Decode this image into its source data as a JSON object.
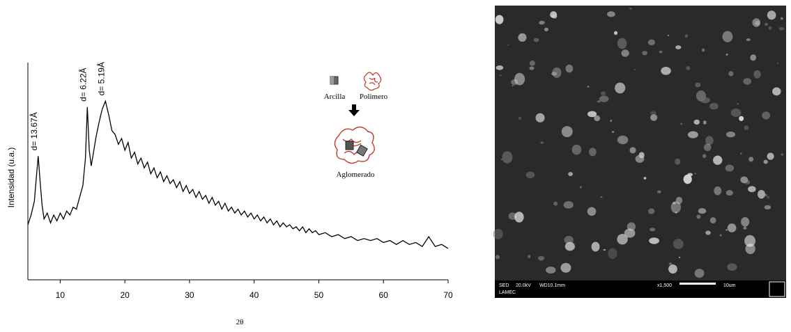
{
  "chart_data": {
    "type": "line",
    "x_label": "2θ",
    "y_label": "Intensidad (u.a.)",
    "color": "#000000",
    "x": [
      5,
      5.5,
      6,
      6.3,
      6.6,
      6.9,
      7.2,
      7.5,
      8,
      8.5,
      9,
      9.5,
      10,
      10.5,
      11,
      11.5,
      12,
      12.5,
      13,
      13.5,
      13.9,
      14.2,
      14.5,
      14.8,
      15,
      15.5,
      16,
      16.5,
      17,
      17.5,
      18,
      18.5,
      19,
      19.5,
      20,
      20.5,
      21,
      21.5,
      22,
      22.5,
      23,
      23.5,
      24,
      24.5,
      25,
      25.5,
      26,
      26.5,
      27,
      27.5,
      28,
      28.5,
      29,
      29.5,
      30,
      30.5,
      31,
      31.5,
      32,
      32.5,
      33,
      33.5,
      34,
      34.5,
      35,
      35.5,
      36,
      36.5,
      37,
      37.5,
      38,
      38.5,
      39,
      39.5,
      40,
      40.5,
      41,
      41.5,
      42,
      42.5,
      43,
      43.5,
      44,
      44.5,
      45,
      45.5,
      46,
      46.5,
      47,
      47.5,
      48,
      48.5,
      49,
      49.5,
      50,
      51,
      52,
      53,
      54,
      55,
      56,
      57,
      58,
      59,
      60,
      61,
      62,
      63,
      64,
      65,
      66,
      67,
      68,
      69,
      70
    ],
    "values": [
      28,
      33,
      40,
      52,
      63,
      50,
      38,
      31,
      34,
      29,
      33,
      30,
      34,
      31,
      35,
      33,
      37,
      36,
      42,
      48,
      62,
      88,
      66,
      58,
      62,
      72,
      80,
      87,
      91,
      84,
      76,
      74,
      69,
      72,
      66,
      70,
      62,
      65,
      59,
      62,
      57,
      60,
      54,
      57,
      52,
      55,
      50,
      53,
      49,
      51,
      47,
      50,
      45,
      48,
      44,
      46,
      42,
      45,
      41,
      43,
      39,
      42,
      38,
      40,
      36,
      39,
      35,
      37,
      34,
      36,
      33,
      35,
      32,
      34,
      31,
      33,
      30,
      32,
      29,
      31,
      28,
      30,
      27,
      29,
      27,
      28,
      26,
      27,
      25,
      27,
      24,
      26,
      24,
      25,
      23,
      24,
      22,
      23,
      21,
      22,
      20,
      21,
      20,
      21,
      19,
      20,
      18,
      20,
      18,
      19,
      17,
      22,
      17,
      18,
      16
    ],
    "xlim": [
      5,
      70
    ],
    "xticks": [
      10,
      20,
      30,
      40,
      50,
      60,
      70
    ],
    "ylim": [
      0,
      100
    ],
    "annotations": [
      {
        "text": "d= 13.67Å",
        "x": 6.6
      },
      {
        "text": "d= 6.22Å",
        "x": 14.2
      },
      {
        "text": "d= 5.19Å",
        "x": 17
      }
    ]
  },
  "inset": {
    "clay": "Arcilla",
    "polymer": "Polimero",
    "agglomerate": "Aglomerado"
  },
  "micrograph": {
    "detector": "SED",
    "voltage": "20.0kV",
    "working_distance": "WD10.1mm",
    "magnification": "x1,500",
    "scale": "10um",
    "lab": "LAMEC"
  }
}
